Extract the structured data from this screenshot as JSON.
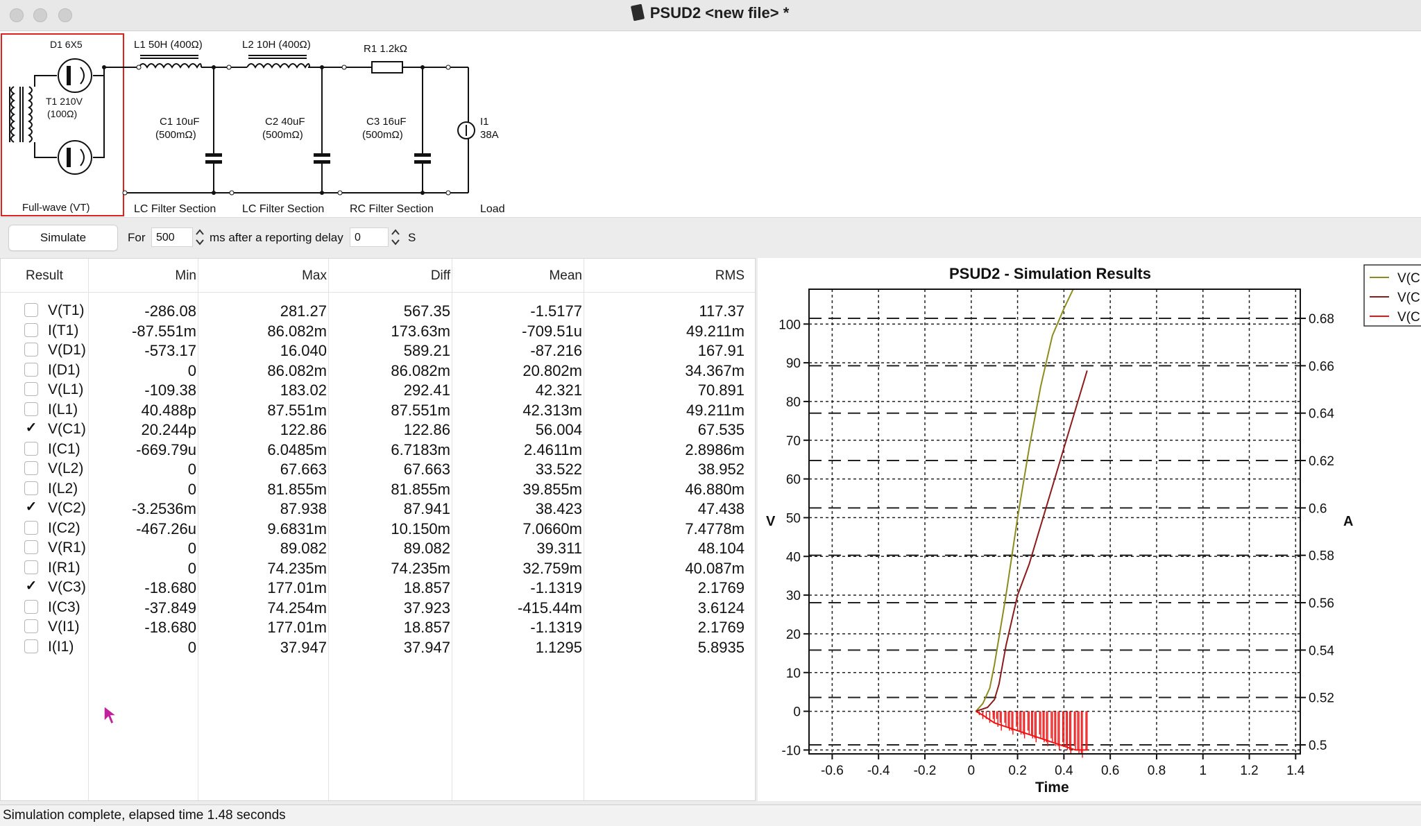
{
  "window": {
    "title": "PSUD2  <new file> *"
  },
  "schematic": {
    "rectifier": {
      "label": "D1 6X5",
      "transformer": "T1 210V",
      "transformer_r": "(100Ω)",
      "section": "Full-wave (VT)"
    },
    "l1": {
      "label": "L1 50H (400Ω)",
      "section": "LC Filter Section"
    },
    "c1": {
      "label": "C1 10uF",
      "esr": "(500mΩ)"
    },
    "l2": {
      "label": "L2 10H (400Ω)",
      "section": "LC Filter Section"
    },
    "c2": {
      "label": "C2 40uF",
      "esr": "(500mΩ)"
    },
    "r1": {
      "label": "R1 1.2kΩ",
      "section": "RC Filter Section"
    },
    "c3": {
      "label": "C3 16uF",
      "esr": "(500mΩ)"
    },
    "load": {
      "label": "I1",
      "value": "38A",
      "section": "Load"
    }
  },
  "controls": {
    "simulate_label": "Simulate",
    "for_label": "For",
    "duration": "500",
    "ms_label": "ms after a reporting delay",
    "delay": "0",
    "s_label": "S"
  },
  "table": {
    "headers": [
      "Result",
      "Min",
      "Max",
      "Diff",
      "Mean",
      "RMS"
    ],
    "rows": [
      {
        "name": "V(T1)",
        "checked": false,
        "min": "-286.08",
        "max": "281.27",
        "diff": "567.35",
        "mean": "-1.5177",
        "rms": "117.37"
      },
      {
        "name": "I(T1)",
        "checked": false,
        "min": "-87.551m",
        "max": "86.082m",
        "diff": "173.63m",
        "mean": "-709.51u",
        "rms": "49.211m"
      },
      {
        "name": "V(D1)",
        "checked": false,
        "min": "-573.17",
        "max": "16.040",
        "diff": "589.21",
        "mean": "-87.216",
        "rms": "167.91"
      },
      {
        "name": "I(D1)",
        "checked": false,
        "min": "0",
        "max": "86.082m",
        "diff": "86.082m",
        "mean": "20.802m",
        "rms": "34.367m"
      },
      {
        "name": "V(L1)",
        "checked": false,
        "min": "-109.38",
        "max": "183.02",
        "diff": "292.41",
        "mean": "42.321",
        "rms": "70.891"
      },
      {
        "name": "I(L1)",
        "checked": false,
        "min": "40.488p",
        "max": "87.551m",
        "diff": "87.551m",
        "mean": "42.313m",
        "rms": "49.211m"
      },
      {
        "name": "V(C1)",
        "checked": true,
        "min": "20.244p",
        "max": "122.86",
        "diff": "122.86",
        "mean": "56.004",
        "rms": "67.535"
      },
      {
        "name": "I(C1)",
        "checked": false,
        "min": "-669.79u",
        "max": "6.0485m",
        "diff": "6.7183m",
        "mean": "2.4611m",
        "rms": "2.8986m"
      },
      {
        "name": "V(L2)",
        "checked": false,
        "min": "0",
        "max": "67.663",
        "diff": "67.663",
        "mean": "33.522",
        "rms": "38.952"
      },
      {
        "name": "I(L2)",
        "checked": false,
        "min": "0",
        "max": "81.855m",
        "diff": "81.855m",
        "mean": "39.855m",
        "rms": "46.880m"
      },
      {
        "name": "V(C2)",
        "checked": true,
        "min": "-3.2536m",
        "max": "87.938",
        "diff": "87.941",
        "mean": "38.423",
        "rms": "47.438"
      },
      {
        "name": "I(C2)",
        "checked": false,
        "min": "-467.26u",
        "max": "9.6831m",
        "diff": "10.150m",
        "mean": "7.0660m",
        "rms": "7.4778m"
      },
      {
        "name": "V(R1)",
        "checked": false,
        "min": "0",
        "max": "89.082",
        "diff": "89.082",
        "mean": "39.311",
        "rms": "48.104"
      },
      {
        "name": "I(R1)",
        "checked": false,
        "min": "0",
        "max": "74.235m",
        "diff": "74.235m",
        "mean": "32.759m",
        "rms": "40.087m"
      },
      {
        "name": "V(C3)",
        "checked": true,
        "min": "-18.680",
        "max": "177.01m",
        "diff": "18.857",
        "mean": "-1.1319",
        "rms": "2.1769"
      },
      {
        "name": "I(C3)",
        "checked": false,
        "min": "-37.849",
        "max": "74.254m",
        "diff": "37.923",
        "mean": "-415.44m",
        "rms": "3.6124"
      },
      {
        "name": "V(I1)",
        "checked": false,
        "min": "-18.680",
        "max": "177.01m",
        "diff": "18.857",
        "mean": "-1.1319",
        "rms": "2.1769"
      },
      {
        "name": "I(I1)",
        "checked": false,
        "min": "0",
        "max": "37.947",
        "diff": "37.947",
        "mean": "1.1295",
        "rms": "5.8935"
      }
    ]
  },
  "chart_data": {
    "type": "line",
    "title": "PSUD2 - Simulation Results",
    "xlabel": "Time",
    "ylabel": "V",
    "y2label": "A",
    "xlim": [
      -0.7,
      1.42
    ],
    "ylim": [
      -11,
      109
    ],
    "y2lim": [
      0.4962,
      0.6923
    ],
    "xticks": [
      "-0.6",
      "-0.4",
      "-0.2",
      "0",
      "0.2",
      "0.4",
      "0.6",
      "0.8",
      "1",
      "1.2",
      "1.4"
    ],
    "yticks": [
      "-10",
      "0",
      "10",
      "20",
      "30",
      "40",
      "50",
      "60",
      "70",
      "80",
      "90",
      "100"
    ],
    "y2ticks": [
      "0.5",
      "0.52",
      "0.54",
      "0.56",
      "0.58",
      "0.6",
      "0.62",
      "0.64",
      "0.66",
      "0.68"
    ],
    "grid": true,
    "legend": "top-right",
    "series": [
      {
        "name": "V(C",
        "color": "#8c8c1e",
        "x": [
          0.02,
          0.05,
          0.08,
          0.1,
          0.15,
          0.2,
          0.25,
          0.3,
          0.35,
          0.4,
          0.44
        ],
        "y": [
          0,
          2,
          6,
          12,
          30,
          50,
          68,
          84,
          97,
          104,
          109
        ]
      },
      {
        "name": "V(C",
        "color": "#8b1a1a",
        "x": [
          0.02,
          0.07,
          0.1,
          0.12,
          0.15,
          0.2,
          0.25,
          0.3,
          0.35,
          0.4,
          0.45,
          0.5
        ],
        "y": [
          0,
          1,
          3,
          7,
          17,
          30,
          38,
          48,
          58,
          68,
          78,
          88
        ]
      },
      {
        "name": "V(C",
        "color": "#ee1111",
        "x": [
          0.02,
          0.05,
          0.1,
          0.15,
          0.2,
          0.25,
          0.3,
          0.35,
          0.4,
          0.45,
          0.5
        ],
        "y": [
          0,
          -1,
          -3,
          -4,
          -5,
          -6,
          -7,
          -8,
          -9,
          -10,
          -10
        ]
      }
    ]
  },
  "status": {
    "text": "Simulation complete, elapsed time 1.48 seconds"
  }
}
